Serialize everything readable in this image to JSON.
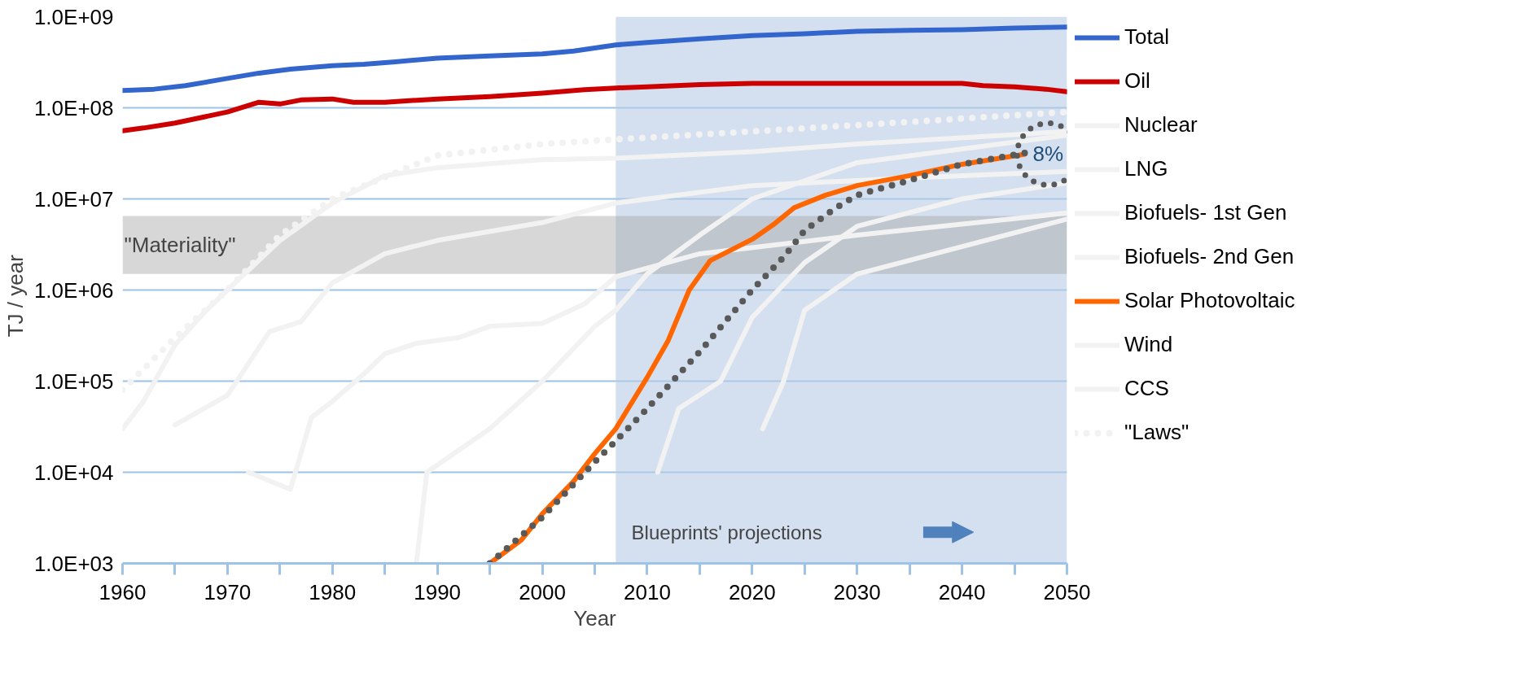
{
  "chart_data": {
    "type": "line",
    "xlabel": "Year",
    "ylabel": "TJ  /  year",
    "log": "y",
    "xlim": [
      1960,
      2050
    ],
    "xticks": [
      1960,
      {
        "value": 1965,
        "label": null
      },
      1970,
      {
        "value": 1975,
        "label": null
      },
      1980,
      {
        "value": 1985,
        "label": null
      },
      1990,
      {
        "value": 1995,
        "label": null
      },
      2000,
      {
        "value": 2005,
        "label": null
      },
      2010,
      {
        "value": 2015,
        "label": null
      },
      2020,
      {
        "value": 2025,
        "label": null
      },
      2030,
      {
        "value": 2035,
        "label": null
      },
      2040,
      {
        "value": 2045,
        "label": null
      },
      2050
    ],
    "ylim": [
      1000,
      1000000000
    ],
    "yticks": [
      {
        "value": 1000,
        "label": "1.0E+03"
      },
      {
        "value": 10000,
        "label": "1.0E+04"
      },
      {
        "value": 100000,
        "label": "1.0E+05"
      },
      {
        "value": 1000000,
        "label": "1.0E+06"
      },
      {
        "value": 10000000,
        "label": "1.0E+07"
      },
      {
        "value": 100000000,
        "label": "1.0E+08"
      },
      {
        "value": 1000000000,
        "label": "1.0E+09"
      }
    ],
    "grid": "y",
    "legend": "right",
    "series": [
      {
        "name": "Total",
        "color": "#3366cc",
        "x": [
          1960,
          1963,
          1966,
          1970,
          1973,
          1976,
          1980,
          1983,
          1986,
          1990,
          1995,
          2000,
          2003,
          2007,
          2010,
          2015,
          2020,
          2025,
          2030,
          2035,
          2040,
          2045,
          2050
        ],
        "values": [
          155000000,
          160000000,
          175000000,
          210000000,
          240000000,
          265000000,
          290000000,
          300000000,
          320000000,
          350000000,
          370000000,
          390000000,
          420000000,
          490000000,
          520000000,
          570000000,
          620000000,
          650000000,
          690000000,
          710000000,
          720000000,
          750000000,
          770000000
        ]
      },
      {
        "name": "Oil",
        "color": "#cc0000",
        "x": [
          1960,
          1962,
          1965,
          1970,
          1973,
          1975,
          1977,
          1980,
          1982,
          1985,
          1990,
          1995,
          2000,
          2004,
          2007,
          2010,
          2015,
          2020,
          2030,
          2040,
          2042,
          2045,
          2048,
          2050
        ],
        "values": [
          56000000,
          60000000,
          68000000,
          90000000,
          115000000,
          110000000,
          122000000,
          125000000,
          115000000,
          115000000,
          125000000,
          133000000,
          145000000,
          158000000,
          165000000,
          170000000,
          180000000,
          185000000,
          185000000,
          185000000,
          175000000,
          170000000,
          160000000,
          150000000
        ]
      },
      {
        "name": "Nuclear",
        "color": "#f2f2f2",
        "x": [
          1960,
          1962,
          1965,
          1968,
          1970,
          1975,
          1980,
          1985,
          1990,
          2000,
          2007,
          2020,
          2030,
          2050
        ],
        "values": [
          30000,
          60000,
          250000,
          600000,
          1000000,
          3500000,
          9000000,
          18000000,
          22000000,
          27000000,
          28000000,
          33000000,
          40000000,
          55000000
        ]
      },
      {
        "name": "LNG",
        "color": "#f2f2f2",
        "x": [
          1965,
          1970,
          1974,
          1977,
          1980,
          1985,
          1990,
          2000,
          2007,
          2020,
          2035,
          2050
        ],
        "values": [
          33000,
          70000,
          350000,
          450000,
          1200000,
          2500000,
          3500000,
          5500000,
          9000000,
          14000000,
          17000000,
          20000000
        ]
      },
      {
        "name": "Biofuels- 1st Gen",
        "color": "#f2f2f2",
        "x": [
          1972,
          1976,
          1978,
          1980,
          1983,
          1985,
          1988,
          1992,
          1995,
          2000,
          2004,
          2007,
          2015,
          2030,
          2050
        ],
        "values": [
          10000,
          6500,
          40000,
          60000,
          120000,
          200000,
          260000,
          300000,
          400000,
          430000,
          700000,
          1400000,
          2500000,
          4000000,
          7000000
        ]
      },
      {
        "name": "Biofuels- 2nd Gen",
        "color": "#f2f2f2",
        "x": [
          2021,
          2023,
          2025,
          2030,
          2040,
          2050
        ],
        "values": [
          30000,
          100000,
          600000,
          1500000,
          3000000,
          6000000
        ]
      },
      {
        "name": "Solar Photovoltaic",
        "color": "#ff6600",
        "x": [
          1995,
          1998,
          2000,
          2003,
          2005,
          2007,
          2010,
          2012,
          2014,
          2016,
          2020,
          2022,
          2024,
          2027,
          2030,
          2035,
          2040,
          2046
        ],
        "values": [
          1000,
          1800,
          3500,
          8000,
          16000,
          30000,
          110000,
          280000,
          1000000,
          2100000,
          3600000,
          5200000,
          8000000,
          11000000,
          14000000,
          18000000,
          24000000,
          31000000
        ]
      },
      {
        "name": "Wind",
        "color": "#f2f2f2",
        "x": [
          1988,
          1989,
          1995,
          2000,
          2005,
          2007,
          2010,
          2015,
          2020,
          2030,
          2050
        ],
        "values": [
          1000,
          10000,
          30000,
          100000,
          400000,
          600000,
          1500000,
          4000000,
          10000000,
          25000000,
          50000000
        ]
      },
      {
        "name": "CCS",
        "color": "#f2f2f2",
        "x": [
          2011,
          2013,
          2017,
          2020,
          2025,
          2030,
          2040,
          2050
        ],
        "values": [
          10000,
          50000,
          100000,
          500000,
          2000000,
          5000000,
          10000000,
          15000000
        ]
      },
      {
        "name": "\"Laws\"",
        "color": "#f2f2f2",
        "line_style": "dotted",
        "x": [
          1960,
          1965,
          1970,
          1975,
          1980,
          1990,
          2000,
          2007,
          2020,
          2035,
          2050
        ],
        "values": [
          80000,
          300000,
          1000000,
          4000000,
          10000000,
          30000000,
          40000000,
          45000000,
          55000000,
          70000000,
          90000000
        ]
      },
      {
        "color": "#595959",
        "line_style": "dotted",
        "x": [
          1995,
          2000,
          2005,
          2007,
          2010,
          2015,
          2020,
          2023,
          2025,
          2028,
          2030,
          2035,
          2040,
          2046
        ],
        "values": [
          1000,
          3200,
          13000,
          22000,
          50000,
          210000,
          1000000,
          2300000,
          4500000,
          8000000,
          11000000,
          16000000,
          24000000,
          32000000
        ]
      }
    ],
    "bands": [
      {
        "axis": "x",
        "from": 2007,
        "to": 2050,
        "label": "Blueprints' projections",
        "color": "#b8cce4"
      },
      {
        "axis": "y",
        "from": 1500000,
        "to": 6500000,
        "label": "\"Materiality\"",
        "color": "#a6a6a6"
      }
    ],
    "annotations": [
      {
        "text": "8%",
        "x": 2046,
        "y": 31000000
      }
    ]
  }
}
